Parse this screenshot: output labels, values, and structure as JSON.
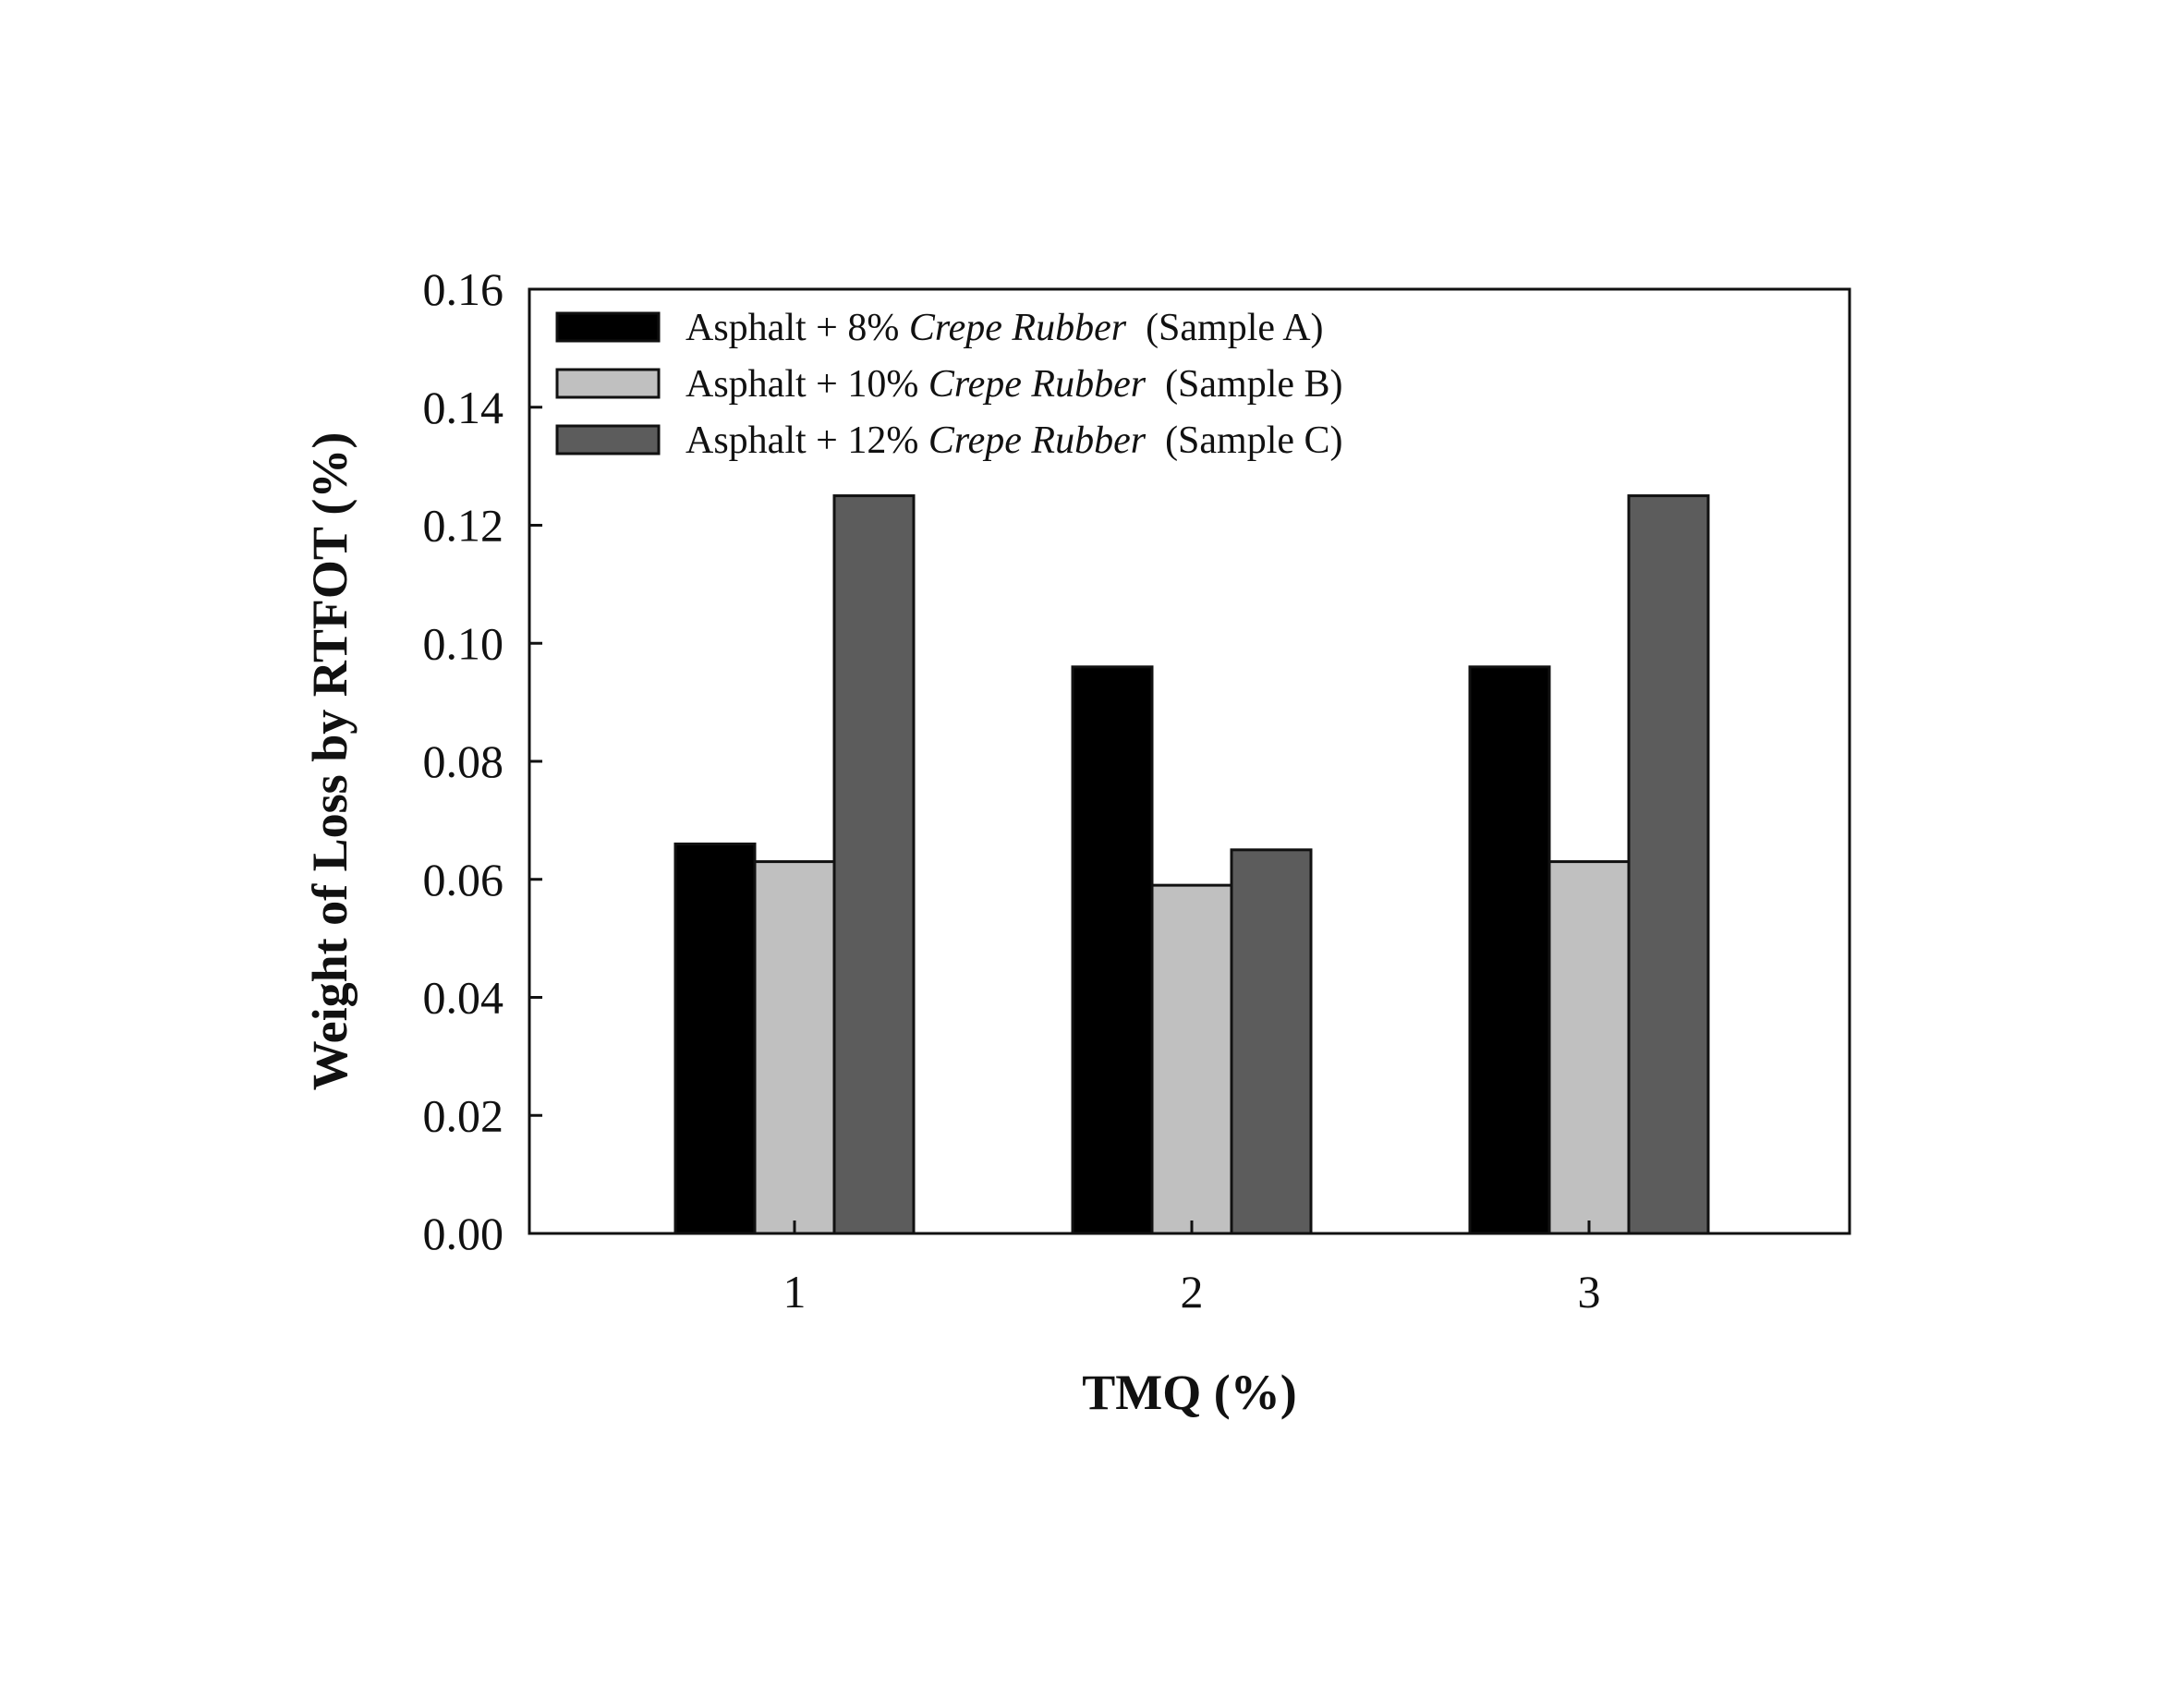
{
  "chart_data": {
    "type": "bar",
    "title": "",
    "xlabel": "TMQ (%)",
    "ylabel": "Weight of Loss by RTFOT (%)",
    "categories": [
      "1",
      "2",
      "3"
    ],
    "ylim": [
      0,
      0.16
    ],
    "yticks": [
      "0.00",
      "0.02",
      "0.04",
      "0.06",
      "0.08",
      "0.10",
      "0.12",
      "0.14",
      "0.16"
    ],
    "legend_position": "top-left",
    "grid": false,
    "series": [
      {
        "name": "Asphalt + 8% Crepe Rubber  (Sample A)",
        "name_parts": {
          "pre": "Asphalt + 8% ",
          "em": "Crepe Rubber",
          "post": "  (Sample A)"
        },
        "values": [
          0.066,
          0.096,
          0.096
        ],
        "color": "#000000"
      },
      {
        "name": "Asphalt + 10% Crepe Rubber  (Sample B)",
        "name_parts": {
          "pre": "Asphalt + 10% ",
          "em": "Crepe Rubber",
          "post": "  (Sample B)"
        },
        "values": [
          0.063,
          0.059,
          0.063
        ],
        "color": "#c0c0c0"
      },
      {
        "name": "Asphalt + 12% Crepe Rubber  (Sample C)",
        "name_parts": {
          "pre": "Asphalt + 12% ",
          "em": "Crepe Rubber",
          "post": "  (Sample C)"
        },
        "values": [
          0.125,
          0.065,
          0.125
        ],
        "color": "#5c5c5c"
      }
    ]
  }
}
